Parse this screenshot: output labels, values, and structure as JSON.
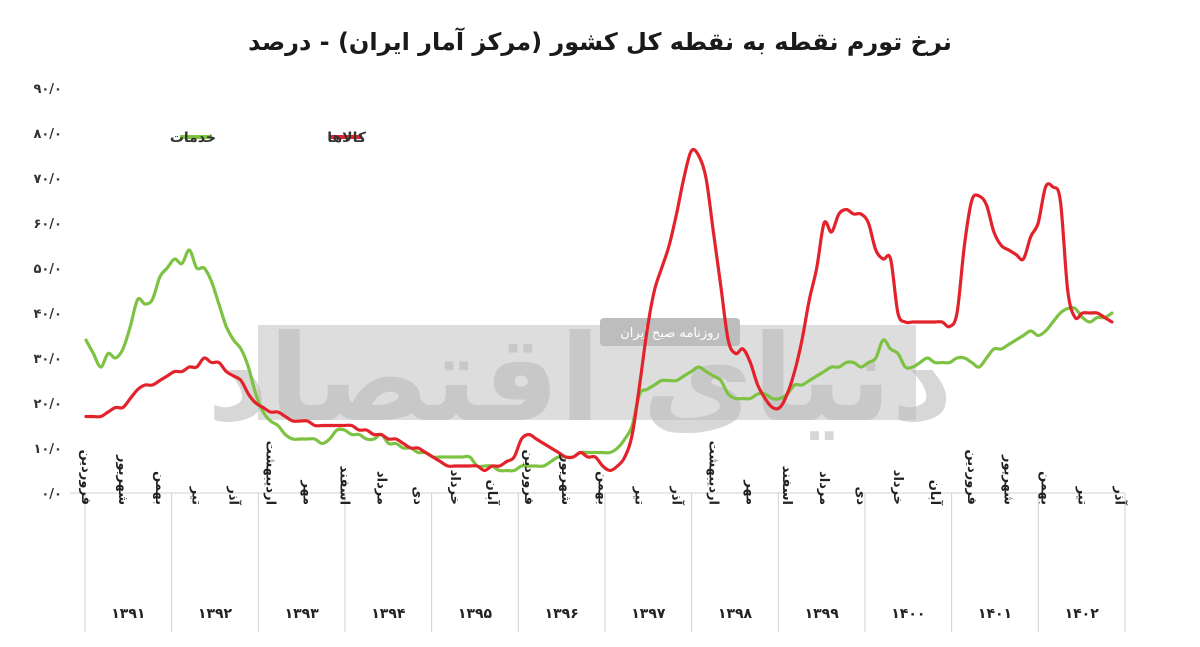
{
  "chart_data": {
    "type": "line",
    "title": "نرخ تورم نقطه به نقطه کل کشور (مرکز آمار ایران) - درصد",
    "ylim": [
      0,
      90
    ],
    "y_ticks": [
      "۰/۰",
      "۱۰/۰",
      "۲۰/۰",
      "۳۰/۰",
      "۴۰/۰",
      "۵۰/۰",
      "۶۰/۰",
      "۷۰/۰",
      "۸۰/۰",
      "۹۰/۰"
    ],
    "grid": false,
    "legend_position": "top-left",
    "years": [
      "۱۳۹۱",
      "۱۳۹۲",
      "۱۳۹۳",
      "۱۳۹۴",
      "۱۳۹۵",
      "۱۳۹۶",
      "۱۳۹۷",
      "۱۳۹۸",
      "۱۳۹۹",
      "۱۴۰۰",
      "۱۴۰۱",
      "۱۴۰۲"
    ],
    "month_labels": [
      {
        "i": 0,
        "label": "فروردین"
      },
      {
        "i": 5,
        "label": "شهریور"
      },
      {
        "i": 10,
        "label": "بهمن"
      },
      {
        "i": 15,
        "label": "تیر"
      },
      {
        "i": 20,
        "label": "آذر"
      },
      {
        "i": 25,
        "label": "اردیبهشت"
      },
      {
        "i": 30,
        "label": "مهر"
      },
      {
        "i": 35,
        "label": "اسفند"
      },
      {
        "i": 40,
        "label": "مرداد"
      },
      {
        "i": 45,
        "label": "دی"
      },
      {
        "i": 50,
        "label": "خرداد"
      },
      {
        "i": 55,
        "label": "آبان"
      },
      {
        "i": 60,
        "label": "فروردین"
      },
      {
        "i": 65,
        "label": "شهریور"
      },
      {
        "i": 70,
        "label": "بهمن"
      },
      {
        "i": 75,
        "label": "تیر"
      },
      {
        "i": 80,
        "label": "آذر"
      },
      {
        "i": 85,
        "label": "اردیبهشت"
      },
      {
        "i": 90,
        "label": "مهر"
      },
      {
        "i": 95,
        "label": "اسفند"
      },
      {
        "i": 100,
        "label": "مرداد"
      },
      {
        "i": 105,
        "label": "دی"
      },
      {
        "i": 110,
        "label": "خرداد"
      },
      {
        "i": 115,
        "label": "آبان"
      },
      {
        "i": 120,
        "label": "فروردین"
      },
      {
        "i": 125,
        "label": "شهریور"
      },
      {
        "i": 130,
        "label": "بهمن"
      },
      {
        "i": 135,
        "label": "تیر"
      },
      {
        "i": 140,
        "label": "آذر"
      }
    ],
    "series": [
      {
        "name": "خدمات",
        "color": "#7dc242",
        "values": [
          34,
          31,
          28,
          31,
          30,
          32,
          37,
          43,
          42,
          43,
          48,
          50,
          52,
          51,
          54,
          50,
          50,
          47,
          42,
          37,
          34,
          32,
          28,
          22,
          18,
          16,
          15,
          13,
          12,
          12,
          12,
          12,
          11,
          12,
          14,
          14,
          13,
          13,
          12,
          12,
          13,
          11,
          11,
          10,
          10,
          9,
          9,
          8,
          8,
          8,
          8,
          8,
          8,
          6,
          6,
          6,
          5,
          5,
          5,
          6,
          6,
          6,
          6,
          7,
          8,
          8,
          8,
          9,
          9,
          9,
          9,
          9,
          10,
          12,
          15,
          22,
          23,
          24,
          25,
          25,
          25,
          26,
          27,
          28,
          27,
          26,
          25,
          22,
          21,
          21,
          21,
          22,
          22,
          21,
          21,
          22,
          24,
          24,
          25,
          26,
          27,
          28,
          28,
          29,
          29,
          28,
          29,
          30,
          34,
          32,
          31,
          28,
          28,
          29,
          30,
          29,
          29,
          29,
          30,
          30,
          29,
          28,
          30,
          32,
          32,
          33,
          34,
          35,
          36,
          35,
          36,
          38,
          40,
          41,
          41,
          39,
          38,
          39,
          39,
          40
        ]
      },
      {
        "name": "کالاها",
        "color": "#e3232c",
        "values": [
          17,
          17,
          17,
          18,
          19,
          19,
          21,
          23,
          24,
          24,
          25,
          26,
          27,
          27,
          28,
          28,
          30,
          29,
          29,
          27,
          26,
          25,
          22,
          20,
          19,
          18,
          18,
          17,
          16,
          16,
          16,
          15,
          15,
          15,
          15,
          15,
          15,
          14,
          14,
          13,
          13,
          12,
          12,
          11,
          10,
          10,
          9,
          8,
          7,
          6,
          6,
          6,
          6,
          6,
          5,
          6,
          6,
          7,
          8,
          12,
          13,
          12,
          11,
          10,
          9,
          8,
          8,
          9,
          8,
          8,
          6,
          5,
          6,
          8,
          13,
          24,
          36,
          45,
          50,
          55,
          62,
          70,
          76,
          75,
          70,
          58,
          46,
          34,
          31,
          32,
          29,
          24,
          21,
          19,
          19,
          22,
          27,
          34,
          43,
          50,
          60,
          58,
          62,
          63,
          62,
          62,
          60,
          54,
          52,
          52,
          40,
          38,
          38,
          38,
          38,
          38,
          38,
          37,
          40,
          55,
          65,
          66,
          64,
          58,
          55,
          54,
          53,
          52,
          57,
          60,
          68,
          68,
          65,
          45,
          39,
          40,
          40,
          40,
          39,
          38
        ]
      }
    ]
  },
  "watermark": {
    "brand": "دنیای اقتصاد",
    "sub": "روزنامه صبح ایران"
  }
}
